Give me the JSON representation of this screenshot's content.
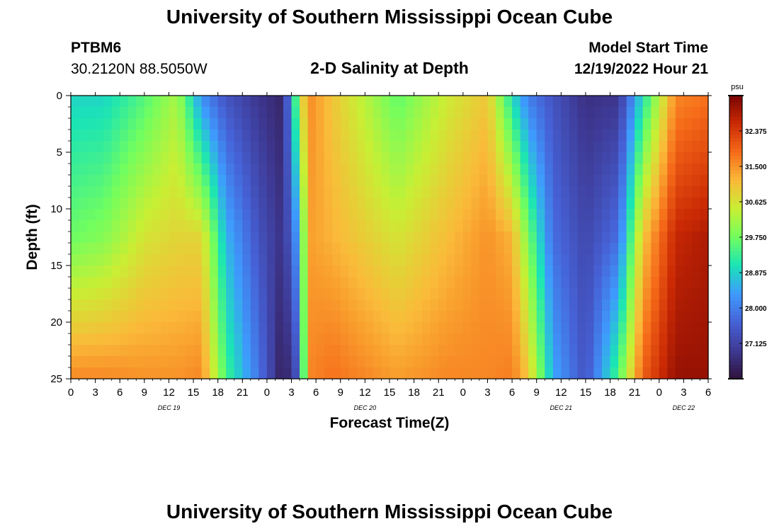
{
  "header": {
    "title": "University of Southern Mississippi Ocean Cube",
    "station": "PTBM6",
    "coords": "30.2120N  88.5050W",
    "subtitle": "2-D Salinity at Depth",
    "model_label": "Model Start Time",
    "model_time": "12/19/2022 Hour 21"
  },
  "footer": {
    "title": "University of Southern Mississippi Ocean Cube"
  },
  "colors": {
    "scale": [
      "#30123b",
      "#3e3994",
      "#4662d7",
      "#3e9bfe",
      "#1ae4b6",
      "#72fe5e",
      "#c8ef34",
      "#faba39",
      "#f66b19",
      "#cb2a04",
      "#7a0403"
    ]
  },
  "chart_data": {
    "type": "heatmap",
    "xlabel": "Forecast Time(Z)",
    "ylabel": "Depth (ft)",
    "x_range_hours": [
      0,
      78
    ],
    "y_range_ft": [
      0,
      25
    ],
    "x_tick_labels": [
      "0",
      "3",
      "6",
      "9",
      "12",
      "15",
      "18",
      "21",
      "0",
      "3",
      "6",
      "9",
      "12",
      "15",
      "18",
      "21",
      "0",
      "3",
      "6",
      "9",
      "12",
      "15",
      "18",
      "21",
      "0",
      "3",
      "6"
    ],
    "y_tick_labels": [
      "0",
      "5",
      "10",
      "15",
      "20",
      "25"
    ],
    "y_ticks": [
      0,
      5,
      10,
      15,
      20,
      25
    ],
    "date_labels": [
      {
        "text": "DEC 19",
        "hour": 12
      },
      {
        "text": "DEC 20",
        "hour": 36
      },
      {
        "text": "DEC 21",
        "hour": 60
      },
      {
        "text": "DEC 22",
        "hour": 75
      }
    ],
    "colorbar": {
      "unit": "psu",
      "min": 26.25,
      "max": 33.25,
      "labels": [
        "32.375",
        "31.500",
        "30.625",
        "29.750",
        "28.875",
        "28.000",
        "27.125"
      ]
    },
    "depth_profiles_psu": [
      {
        "hour": 0,
        "surface": 28.9,
        "mid": 29.7,
        "bottom": 31.6
      },
      {
        "hour": 4,
        "surface": 28.9,
        "mid": 29.9,
        "bottom": 31.6
      },
      {
        "hour": 9,
        "surface": 29.5,
        "mid": 30.6,
        "bottom": 31.5
      },
      {
        "hour": 13,
        "surface": 30.2,
        "mid": 30.8,
        "bottom": 31.5
      },
      {
        "hour": 16,
        "surface": 28.2,
        "mid": 30.8,
        "bottom": 31.6
      },
      {
        "hour": 19,
        "surface": 27.4,
        "mid": 28.6,
        "bottom": 29.4
      },
      {
        "hour": 23,
        "surface": 26.9,
        "mid": 27.4,
        "bottom": 27.9
      },
      {
        "hour": 26,
        "surface": 26.6,
        "mid": 26.8,
        "bottom": 26.4
      },
      {
        "hour": 28,
        "surface": 30.3,
        "mid": 28.6,
        "bottom": 27.6
      },
      {
        "hour": 29,
        "surface": 31.6,
        "mid": 31.4,
        "bottom": 31.6
      },
      {
        "hour": 32,
        "surface": 31.0,
        "mid": 31.2,
        "bottom": 31.8
      },
      {
        "hour": 40,
        "surface": 29.6,
        "mid": 30.6,
        "bottom": 31.4
      },
      {
        "hour": 46,
        "surface": 30.5,
        "mid": 31.1,
        "bottom": 31.6
      },
      {
        "hour": 51,
        "surface": 31.0,
        "mid": 31.5,
        "bottom": 31.6
      },
      {
        "hour": 54,
        "surface": 29.0,
        "mid": 31.2,
        "bottom": 31.7
      },
      {
        "hour": 56,
        "surface": 28.0,
        "mid": 29.8,
        "bottom": 31.0
      },
      {
        "hour": 59,
        "surface": 27.4,
        "mid": 27.8,
        "bottom": 28.5
      },
      {
        "hour": 63,
        "surface": 26.8,
        "mid": 27.2,
        "bottom": 27.4
      },
      {
        "hour": 67,
        "surface": 26.9,
        "mid": 27.8,
        "bottom": 29.5
      },
      {
        "hour": 70,
        "surface": 29.0,
        "mid": 31.0,
        "bottom": 32.0
      },
      {
        "hour": 74,
        "surface": 31.6,
        "mid": 32.6,
        "bottom": 33.0
      },
      {
        "hour": 78,
        "surface": 31.8,
        "mid": 32.8,
        "bottom": 33.0
      }
    ]
  }
}
